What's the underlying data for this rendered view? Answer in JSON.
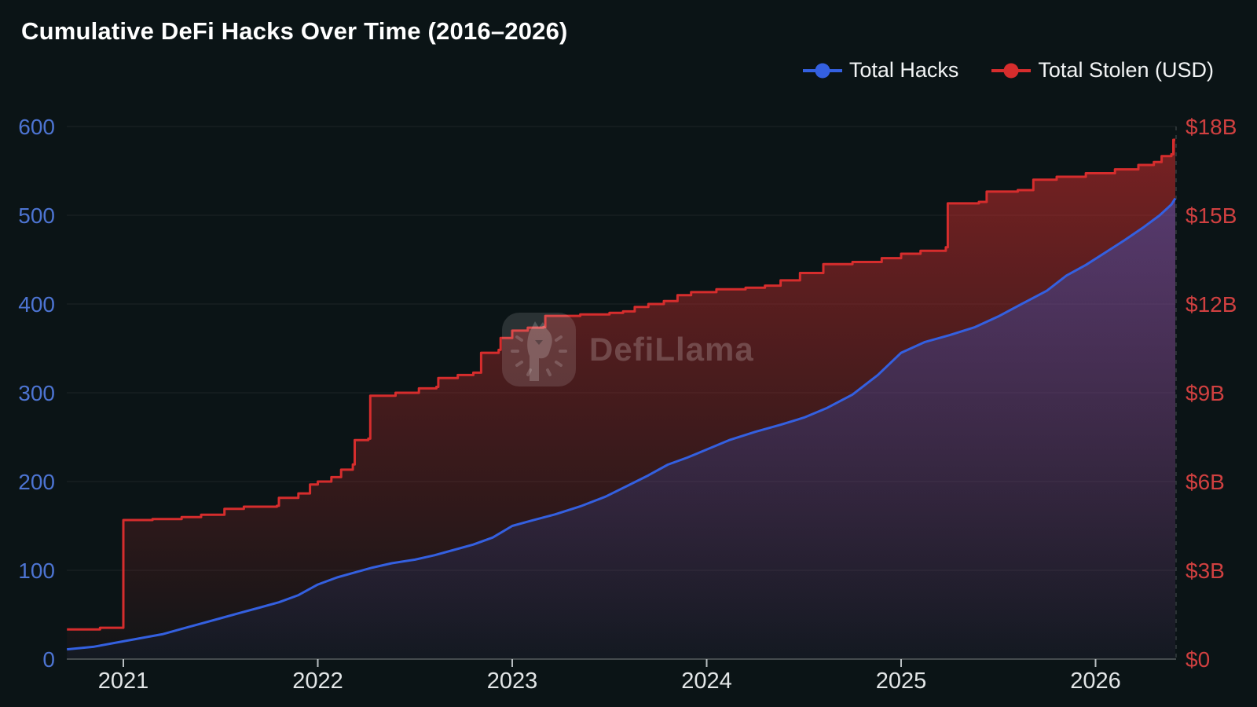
{
  "header": {
    "title": "Cumulative DeFi Hacks Over Time (2016–2026)"
  },
  "legend": {
    "items": [
      {
        "label": "Total Hacks",
        "color": "#3460e0"
      },
      {
        "label": "Total Stolen (USD)",
        "color": "#d62d2d"
      }
    ]
  },
  "watermark": {
    "text": "DefiLlama"
  },
  "chart_data": {
    "type": "line",
    "title": "Cumulative DeFi Hacks Over Time (2016–2026)",
    "x_axis": {
      "tick_labels": [
        "2021",
        "2022",
        "2023",
        "2024",
        "2025",
        "2026"
      ],
      "tick_years": [
        2021,
        2022,
        2023,
        2024,
        2025,
        2026
      ],
      "range": [
        2020.71,
        2026.41
      ],
      "label_color": "#e3e6e7",
      "axis_line_color": "#454b4e",
      "tick_mark_color": "#b9bfc2"
    },
    "y_axis_left": {
      "series_name": "Total Hacks",
      "tick_labels": [
        "0",
        "100",
        "200",
        "300",
        "400",
        "500",
        "600"
      ],
      "tick_values": [
        0,
        100,
        200,
        300,
        400,
        500,
        600
      ],
      "range": [
        0,
        600
      ],
      "label_color": "#4d74d2"
    },
    "y_axis_right": {
      "series_name": "Total Stolen (USD)",
      "tick_labels": [
        "$0",
        "$3B",
        "$6B",
        "$9B",
        "$12B",
        "$15B",
        "$18B"
      ],
      "tick_values": [
        0,
        3,
        6,
        9,
        12,
        15,
        18
      ],
      "range": [
        0,
        18
      ],
      "unit": "USD billions",
      "label_color": "#d04040"
    },
    "grid_color": "rgba(255,255,255,0.07)",
    "legend_position": "top-right",
    "series": [
      {
        "name": "Total Stolen (USD)",
        "axis": "right",
        "color": "#d62d2d",
        "style": "step-area",
        "area_top_alpha": 0.55,
        "area_bottom_alpha": 0.03,
        "points": [
          [
            2020.71,
            1.0
          ],
          [
            2020.88,
            1.06
          ],
          [
            2021.0,
            1.1
          ],
          [
            2021.0,
            4.7
          ],
          [
            2021.15,
            4.73
          ],
          [
            2021.3,
            4.8
          ],
          [
            2021.4,
            4.88
          ],
          [
            2021.52,
            5.08
          ],
          [
            2021.62,
            5.15
          ],
          [
            2021.79,
            5.18
          ],
          [
            2021.8,
            5.45
          ],
          [
            2021.9,
            5.6
          ],
          [
            2021.96,
            5.9
          ],
          [
            2022.0,
            6.0
          ],
          [
            2022.07,
            6.15
          ],
          [
            2022.12,
            6.4
          ],
          [
            2022.18,
            6.58
          ],
          [
            2022.19,
            7.4
          ],
          [
            2022.26,
            7.45
          ],
          [
            2022.27,
            8.9
          ],
          [
            2022.4,
            9.0
          ],
          [
            2022.52,
            9.15
          ],
          [
            2022.61,
            9.2
          ],
          [
            2022.62,
            9.5
          ],
          [
            2022.72,
            9.6
          ],
          [
            2022.8,
            9.68
          ],
          [
            2022.84,
            10.35
          ],
          [
            2022.93,
            10.45
          ],
          [
            2022.94,
            10.85
          ],
          [
            2023.0,
            11.1
          ],
          [
            2023.08,
            11.2
          ],
          [
            2023.16,
            11.22
          ],
          [
            2023.17,
            11.6
          ],
          [
            2023.35,
            11.65
          ],
          [
            2023.5,
            11.7
          ],
          [
            2023.57,
            11.75
          ],
          [
            2023.63,
            11.9
          ],
          [
            2023.7,
            12.0
          ],
          [
            2023.78,
            12.1
          ],
          [
            2023.85,
            12.3
          ],
          [
            2023.92,
            12.4
          ],
          [
            2024.05,
            12.5
          ],
          [
            2024.2,
            12.55
          ],
          [
            2024.3,
            12.62
          ],
          [
            2024.38,
            12.8
          ],
          [
            2024.48,
            13.05
          ],
          [
            2024.6,
            13.35
          ],
          [
            2024.75,
            13.42
          ],
          [
            2024.9,
            13.55
          ],
          [
            2025.0,
            13.7
          ],
          [
            2025.1,
            13.8
          ],
          [
            2025.23,
            13.92
          ],
          [
            2025.24,
            15.4
          ],
          [
            2025.4,
            15.45
          ],
          [
            2025.44,
            15.8
          ],
          [
            2025.6,
            15.85
          ],
          [
            2025.68,
            16.2
          ],
          [
            2025.8,
            16.3
          ],
          [
            2025.95,
            16.42
          ],
          [
            2026.1,
            16.55
          ],
          [
            2026.22,
            16.7
          ],
          [
            2026.3,
            16.8
          ],
          [
            2026.34,
            17.0
          ],
          [
            2026.39,
            17.06
          ],
          [
            2026.4,
            17.55
          ],
          [
            2026.41,
            17.55
          ]
        ]
      },
      {
        "name": "Total Hacks",
        "axis": "left",
        "color": "#3460e0",
        "style": "line-area",
        "area_top_alpha": 0.45,
        "area_bottom_alpha": 0.05,
        "points": [
          [
            2020.71,
            11
          ],
          [
            2020.85,
            14
          ],
          [
            2021.0,
            20
          ],
          [
            2021.1,
            24
          ],
          [
            2021.2,
            28
          ],
          [
            2021.3,
            34
          ],
          [
            2021.4,
            40
          ],
          [
            2021.5,
            46
          ],
          [
            2021.6,
            52
          ],
          [
            2021.7,
            58
          ],
          [
            2021.8,
            64
          ],
          [
            2021.9,
            72
          ],
          [
            2022.0,
            84
          ],
          [
            2022.1,
            92
          ],
          [
            2022.18,
            97
          ],
          [
            2022.28,
            103
          ],
          [
            2022.38,
            108
          ],
          [
            2022.5,
            112
          ],
          [
            2022.6,
            117
          ],
          [
            2022.7,
            123
          ],
          [
            2022.8,
            129
          ],
          [
            2022.9,
            137
          ],
          [
            2023.0,
            150
          ],
          [
            2023.1,
            156
          ],
          [
            2023.22,
            163
          ],
          [
            2023.35,
            172
          ],
          [
            2023.48,
            183
          ],
          [
            2023.6,
            196
          ],
          [
            2023.7,
            207
          ],
          [
            2023.8,
            219
          ],
          [
            2023.9,
            227
          ],
          [
            2024.0,
            236
          ],
          [
            2024.12,
            247
          ],
          [
            2024.25,
            256
          ],
          [
            2024.38,
            264
          ],
          [
            2024.5,
            272
          ],
          [
            2024.62,
            283
          ],
          [
            2024.75,
            298
          ],
          [
            2024.88,
            320
          ],
          [
            2025.0,
            345
          ],
          [
            2025.12,
            357
          ],
          [
            2025.25,
            365
          ],
          [
            2025.38,
            374
          ],
          [
            2025.5,
            386
          ],
          [
            2025.62,
            400
          ],
          [
            2025.75,
            415
          ],
          [
            2025.85,
            432
          ],
          [
            2025.95,
            444
          ],
          [
            2026.05,
            458
          ],
          [
            2026.15,
            472
          ],
          [
            2026.25,
            487
          ],
          [
            2026.33,
            500
          ],
          [
            2026.39,
            512
          ],
          [
            2026.41,
            519
          ]
        ]
      }
    ]
  }
}
